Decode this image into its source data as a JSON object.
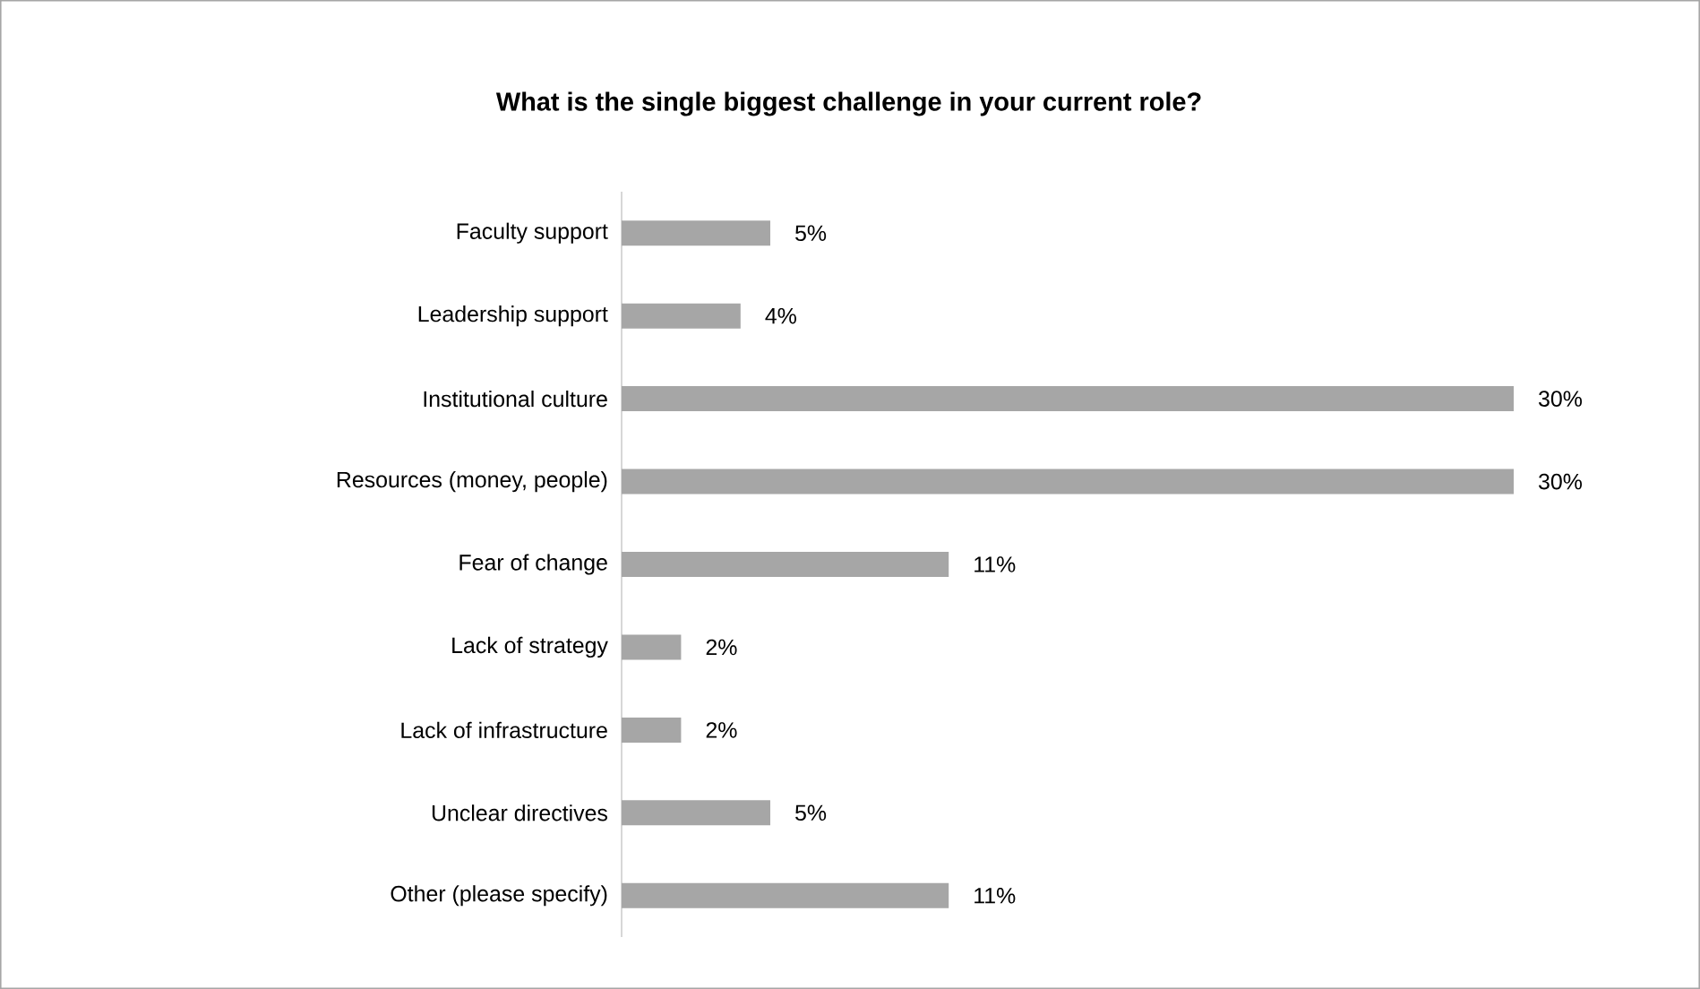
{
  "chart_data": {
    "type": "bar",
    "orientation": "horizontal",
    "title": "What is the single biggest challenge in your current role?",
    "categories": [
      "Faculty support",
      "Leadership support",
      "Institutional culture",
      "Resources (money, people)",
      "Fear of change",
      "Lack of strategy",
      "Lack of infrastructure",
      "Unclear directives",
      "Other (please specify)"
    ],
    "values": [
      5,
      4,
      30,
      30,
      11,
      2,
      2,
      5,
      11
    ],
    "value_labels": [
      "5%",
      "4%",
      "30%",
      "30%",
      "11%",
      "2%",
      "2%",
      "5%",
      "11%"
    ],
    "color": "#a6a6a6"
  }
}
